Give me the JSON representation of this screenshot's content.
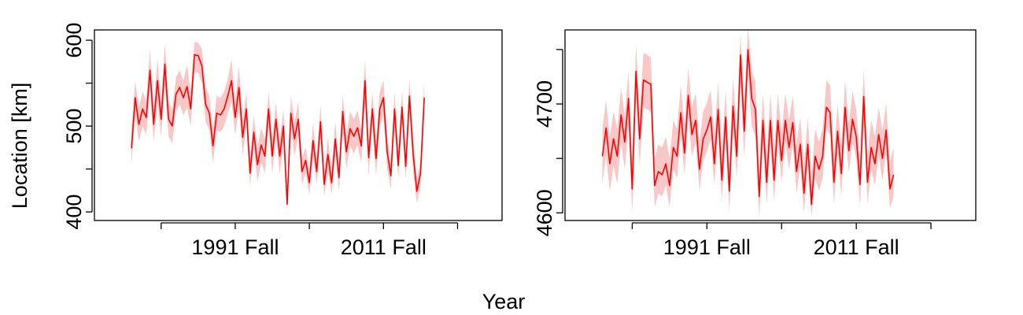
{
  "figure": {
    "xlabel": "Year",
    "ylabel": "Location [km]"
  },
  "chart_data": [
    {
      "type": "line",
      "title": "",
      "xlabel": "Year",
      "ylabel": "Location [km]",
      "x_start_year": 1977,
      "x_step_years": 0.5,
      "xlim": [
        1972,
        2027
      ],
      "xticks": [
        1981,
        1991,
        2001,
        2011,
        2021
      ],
      "xtick_labels": [
        "",
        "1991 Fall",
        "",
        "2011 Fall",
        ""
      ],
      "ylim": [
        390,
        612
      ],
      "yticks": [
        400,
        450,
        500,
        550,
        600
      ],
      "ytick_labels": [
        "400",
        "",
        "500",
        "",
        "600"
      ],
      "grid": false,
      "legend": "none",
      "colors": {
        "line": "#ff0000",
        "band": "#f8c8c8"
      },
      "series": [
        {
          "values": [
            474,
            533,
            502,
            520,
            510,
            565,
            502,
            553,
            508,
            572,
            508,
            500,
            537,
            545,
            533,
            546,
            520,
            583,
            582,
            570,
            525,
            515,
            477,
            515,
            513,
            520,
            535,
            553,
            510,
            545,
            487,
            520,
            445,
            493,
            455,
            478,
            465,
            520,
            465,
            508,
            465,
            500,
            409,
            515,
            485,
            508,
            447,
            460,
            434,
            483,
            447,
            505,
            432,
            467,
            434,
            485,
            440,
            517,
            470,
            497,
            488,
            498,
            477,
            553,
            463,
            520,
            462,
            520,
            533,
            470,
            442,
            520,
            454,
            522,
            453,
            535,
            468,
            424,
            445,
            533
          ],
          "lower": [
            454,
            513,
            482,
            500,
            490,
            540,
            482,
            528,
            488,
            547,
            488,
            480,
            517,
            525,
            513,
            521,
            500,
            563,
            562,
            550,
            505,
            495,
            457,
            495,
            493,
            500,
            515,
            528,
            490,
            520,
            467,
            500,
            430,
            473,
            435,
            458,
            445,
            500,
            445,
            488,
            445,
            480,
            400,
            495,
            465,
            488,
            432,
            445,
            420,
            463,
            432,
            485,
            418,
            447,
            420,
            465,
            425,
            497,
            450,
            477,
            468,
            478,
            457,
            528,
            443,
            500,
            442,
            500,
            513,
            450,
            427,
            500,
            439,
            502,
            438,
            515,
            448,
            410,
            430,
            513
          ],
          "upper": [
            494,
            553,
            522,
            540,
            530,
            590,
            522,
            578,
            528,
            597,
            528,
            520,
            557,
            565,
            553,
            571,
            540,
            598,
            597,
            590,
            545,
            535,
            497,
            535,
            533,
            540,
            555,
            578,
            530,
            570,
            507,
            540,
            460,
            513,
            475,
            498,
            485,
            540,
            485,
            528,
            485,
            520,
            424,
            535,
            505,
            528,
            462,
            475,
            449,
            503,
            462,
            525,
            447,
            487,
            449,
            505,
            455,
            537,
            490,
            517,
            508,
            518,
            497,
            578,
            483,
            540,
            482,
            540,
            553,
            490,
            457,
            540,
            469,
            542,
            468,
            555,
            488,
            439,
            460,
            553
          ]
        }
      ]
    },
    {
      "type": "line",
      "title": "",
      "xlabel": "Year",
      "ylabel": "",
      "x_start_year": 1977,
      "x_step_years": 0.5,
      "xlim": [
        1972,
        2027
      ],
      "xticks": [
        1981,
        1991,
        2001,
        2011,
        2021
      ],
      "xtick_labels": [
        "",
        "1991 Fall",
        "",
        "2011 Fall",
        ""
      ],
      "ylim": [
        4593,
        4768
      ],
      "yticks": [
        4600,
        4650,
        4700,
        4750
      ],
      "ytick_labels": [
        "4600",
        "",
        "4700",
        ""
      ],
      "grid": false,
      "legend": "none",
      "colors": {
        "line": "#ff0000",
        "band": "#f8c8c8"
      },
      "series": [
        {
          "values": [
            4652,
            4678,
            4645,
            4668,
            4652,
            4690,
            4665,
            4705,
            4622,
            4730,
            4668,
            4722,
            4720,
            4718,
            4625,
            4638,
            4635,
            4645,
            4625,
            4660,
            4652,
            4692,
            4655,
            4708,
            4672,
            4685,
            4640,
            4668,
            4676,
            4688,
            4645,
            4695,
            4630,
            4688,
            4620,
            4698,
            4652,
            4745,
            4675,
            4750,
            4705,
            4695,
            4615,
            4685,
            4628,
            4685,
            4630,
            4685,
            4648,
            4685,
            4660,
            4683,
            4638,
            4663,
            4618,
            4663,
            4608,
            4652,
            4640,
            4652,
            4697,
            4692,
            4628,
            4675,
            4636,
            4697,
            4657,
            4686,
            4670,
            4626,
            4707,
            4628,
            4660,
            4645,
            4672,
            4650,
            4676,
            4622,
            4635
          ],
          "lower": [
            4627,
            4653,
            4620,
            4643,
            4627,
            4665,
            4640,
            4680,
            4600,
            4705,
            4643,
            4697,
            4695,
            4693,
            4605,
            4618,
            4615,
            4625,
            4605,
            4640,
            4632,
            4672,
            4635,
            4688,
            4652,
            4665,
            4620,
            4648,
            4656,
            4668,
            4625,
            4675,
            4610,
            4668,
            4600,
            4678,
            4632,
            4720,
            4650,
            4725,
            4680,
            4670,
            4595,
            4665,
            4608,
            4665,
            4610,
            4665,
            4628,
            4665,
            4640,
            4663,
            4618,
            4643,
            4600,
            4643,
            4596,
            4632,
            4620,
            4632,
            4677,
            4672,
            4608,
            4655,
            4616,
            4677,
            4637,
            4666,
            4650,
            4606,
            4687,
            4608,
            4640,
            4625,
            4652,
            4630,
            4656,
            4604,
            4615
          ],
          "upper": [
            4677,
            4703,
            4670,
            4693,
            4677,
            4715,
            4690,
            4730,
            4647,
            4755,
            4693,
            4747,
            4745,
            4743,
            4650,
            4663,
            4660,
            4670,
            4650,
            4685,
            4677,
            4717,
            4680,
            4733,
            4697,
            4710,
            4665,
            4693,
            4701,
            4713,
            4670,
            4720,
            4655,
            4713,
            4645,
            4723,
            4677,
            4765,
            4700,
            4770,
            4730,
            4720,
            4640,
            4710,
            4653,
            4710,
            4655,
            4710,
            4673,
            4710,
            4685,
            4708,
            4663,
            4688,
            4643,
            4688,
            4633,
            4677,
            4665,
            4677,
            4722,
            4717,
            4653,
            4700,
            4661,
            4722,
            4682,
            4711,
            4695,
            4651,
            4732,
            4653,
            4685,
            4670,
            4697,
            4675,
            4701,
            4647,
            4660
          ]
        }
      ]
    }
  ]
}
